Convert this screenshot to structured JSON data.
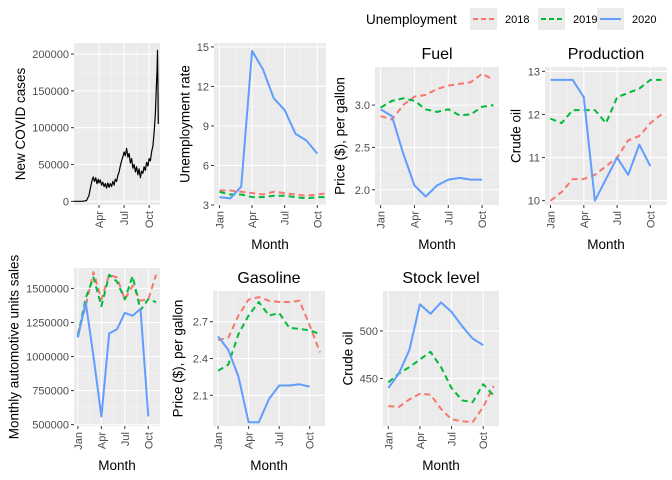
{
  "legend": {
    "title": "Unemployment",
    "position": "top-right",
    "entries": [
      {
        "label": "2018",
        "color": "#F8766D",
        "linetype": "dashed"
      },
      {
        "label": "2019",
        "color": "#00BA38",
        "linetype": "dashed"
      },
      {
        "label": "2020",
        "color": "#619CFF",
        "linetype": "solid"
      }
    ]
  },
  "chart_data": [
    {
      "id": "covid",
      "type": "line",
      "title": "",
      "xlabel": "",
      "ylabel": "New COVID cases",
      "xlim": [
        0,
        10.3
      ],
      "ylim": [
        -5000,
        215000
      ],
      "x_ticks": [
        {
          "v": 3,
          "label": "Apr"
        },
        {
          "v": 6,
          "label": "Jul"
        },
        {
          "v": 9,
          "label": "Oct"
        }
      ],
      "y_ticks": [
        {
          "v": 0,
          "label": "0"
        },
        {
          "v": 50000,
          "label": "50000"
        },
        {
          "v": 100000,
          "label": "100000"
        },
        {
          "v": 150000,
          "label": "150000"
        },
        {
          "v": 200000,
          "label": "200000"
        }
      ],
      "series": [
        {
          "color": "#000000",
          "dashed": false,
          "x": [
            0,
            1.0,
            1.5,
            1.8,
            2.0,
            2.15,
            2.3,
            2.45,
            2.6,
            2.75,
            2.9,
            3.0,
            3.15,
            3.3,
            3.45,
            3.6,
            3.75,
            3.9,
            4.05,
            4.2,
            4.35,
            4.5,
            4.65,
            4.8,
            4.95,
            5.1,
            5.25,
            5.4,
            5.55,
            5.7,
            5.85,
            6.0,
            6.15,
            6.3,
            6.45,
            6.6,
            6.75,
            6.9,
            7.05,
            7.2,
            7.35,
            7.5,
            7.65,
            7.8,
            7.95,
            8.1,
            8.25,
            8.4,
            8.55,
            8.7,
            8.85,
            9.0,
            9.15,
            9.3,
            9.45,
            9.6,
            9.75,
            9.85,
            9.95,
            10.0,
            10.05,
            10.1
          ],
          "y": [
            0,
            0,
            1000,
            8000,
            20000,
            28000,
            33000,
            27000,
            32000,
            24000,
            30000,
            25000,
            29000,
            22000,
            26000,
            20000,
            24000,
            18000,
            25000,
            19000,
            24000,
            20000,
            27000,
            22000,
            30000,
            27000,
            35000,
            40000,
            48000,
            55000,
            60000,
            67000,
            62000,
            72000,
            60000,
            65000,
            52000,
            58000,
            45000,
            50000,
            40000,
            47000,
            36000,
            44000,
            32000,
            41000,
            38000,
            47000,
            42000,
            53000,
            48000,
            58000,
            55000,
            68000,
            75000,
            95000,
            120000,
            150000,
            180000,
            205000,
            160000,
            105000
          ]
        }
      ]
    },
    {
      "id": "unemployment",
      "type": "line",
      "title": "",
      "xlabel": "Month",
      "ylabel": "Unemployment rate",
      "xlim": [
        0.5,
        10.8
      ],
      "ylim": [
        3.0,
        15.3
      ],
      "x_ticks": [
        {
          "v": 1,
          "label": "Jan"
        },
        {
          "v": 4,
          "label": "Apr"
        },
        {
          "v": 7,
          "label": "Jul"
        },
        {
          "v": 10,
          "label": "Oct"
        }
      ],
      "y_ticks": [
        {
          "v": 3,
          "label": "3"
        },
        {
          "v": 6,
          "label": "6"
        },
        {
          "v": 9,
          "label": "9"
        },
        {
          "v": 12,
          "label": "12"
        },
        {
          "v": 15,
          "label": "15"
        }
      ],
      "series": [
        {
          "name": "2018",
          "color": "#F8766D",
          "dashed": true,
          "x": [
            1,
            2,
            3,
            4,
            5,
            6,
            7,
            8,
            9,
            10,
            11
          ],
          "y": [
            4.1,
            4.1,
            4.0,
            3.9,
            3.8,
            4.0,
            3.9,
            3.8,
            3.7,
            3.8,
            3.9
          ]
        },
        {
          "name": "2019",
          "color": "#00BA38",
          "dashed": true,
          "x": [
            1,
            2,
            3,
            4,
            5,
            6,
            7,
            8,
            9,
            10,
            11
          ],
          "y": [
            4.0,
            3.8,
            3.8,
            3.6,
            3.6,
            3.7,
            3.7,
            3.6,
            3.5,
            3.6,
            3.6
          ]
        },
        {
          "name": "2020",
          "color": "#619CFF",
          "dashed": false,
          "x": [
            1,
            2,
            3,
            4,
            5,
            6,
            7,
            8,
            9,
            10
          ],
          "y": [
            3.6,
            3.5,
            4.4,
            14.7,
            13.3,
            11.1,
            10.2,
            8.4,
            7.9,
            6.9
          ]
        }
      ]
    },
    {
      "id": "fuel",
      "type": "line",
      "title": "Fuel",
      "xlabel": "Month",
      "ylabel": "Price ($), per gallon",
      "xlim": [
        0.5,
        11.5
      ],
      "ylim": [
        1.82,
        3.45
      ],
      "x_ticks": [
        {
          "v": 1,
          "label": "Jan"
        },
        {
          "v": 4,
          "label": "Apr"
        },
        {
          "v": 7,
          "label": "Jul"
        },
        {
          "v": 10,
          "label": "Oct"
        }
      ],
      "y_ticks": [
        {
          "v": 2.0,
          "label": "2.0"
        },
        {
          "v": 2.5,
          "label": "2.5"
        },
        {
          "v": 3.0,
          "label": "3.0"
        }
      ],
      "series": [
        {
          "name": "2018",
          "color": "#F8766D",
          "dashed": true,
          "x": [
            1,
            2,
            3,
            4,
            5,
            6,
            7,
            8,
            9,
            10,
            11
          ],
          "y": [
            2.87,
            2.83,
            3.0,
            3.1,
            3.12,
            3.19,
            3.23,
            3.25,
            3.27,
            3.37,
            3.3
          ]
        },
        {
          "name": "2019",
          "color": "#00BA38",
          "dashed": true,
          "x": [
            1,
            2,
            3,
            4,
            5,
            6,
            7,
            8,
            9,
            10,
            11
          ],
          "y": [
            2.97,
            3.05,
            3.08,
            3.05,
            2.95,
            2.92,
            2.95,
            2.88,
            2.89,
            2.98,
            3.0
          ]
        },
        {
          "name": "2020",
          "color": "#619CFF",
          "dashed": false,
          "x": [
            1,
            2,
            3,
            4,
            5,
            6,
            7,
            8,
            9,
            10
          ],
          "y": [
            2.95,
            2.87,
            2.43,
            2.05,
            1.92,
            2.05,
            2.12,
            2.14,
            2.12,
            2.12
          ]
        }
      ]
    },
    {
      "id": "production",
      "type": "line",
      "title": "Production",
      "xlabel": "Month",
      "ylabel": "Crude oil",
      "xlim": [
        0.5,
        11.5
      ],
      "ylim": [
        9.9,
        13.1
      ],
      "x_ticks": [
        {
          "v": 1,
          "label": "Jan"
        },
        {
          "v": 4,
          "label": "Apr"
        },
        {
          "v": 7,
          "label": "Jul"
        },
        {
          "v": 10,
          "label": "Oct"
        }
      ],
      "y_ticks": [
        {
          "v": 10,
          "label": "10"
        },
        {
          "v": 11,
          "label": "11"
        },
        {
          "v": 12,
          "label": "12"
        },
        {
          "v": 13,
          "label": "13"
        }
      ],
      "series": [
        {
          "name": "2018",
          "color": "#F8766D",
          "dashed": true,
          "x": [
            1,
            2,
            3,
            4,
            5,
            6,
            7,
            8,
            9,
            10,
            11
          ],
          "y": [
            10.0,
            10.2,
            10.5,
            10.5,
            10.6,
            10.8,
            11.0,
            11.4,
            11.5,
            11.8,
            12.0
          ]
        },
        {
          "name": "2019",
          "color": "#00BA38",
          "dashed": true,
          "x": [
            1,
            2,
            3,
            4,
            5,
            6,
            7,
            8,
            9,
            10,
            11
          ],
          "y": [
            11.9,
            11.8,
            12.1,
            12.1,
            12.1,
            11.8,
            12.4,
            12.5,
            12.6,
            12.8,
            12.8
          ]
        },
        {
          "name": "2020",
          "color": "#619CFF",
          "dashed": false,
          "x": [
            1,
            2,
            3,
            4,
            5,
            6,
            7,
            8,
            9,
            10
          ],
          "y": [
            12.8,
            12.8,
            12.8,
            12.4,
            10.0,
            10.5,
            11.0,
            10.6,
            11.3,
            10.8
          ]
        }
      ]
    },
    {
      "id": "auto-sales",
      "type": "line",
      "title": "",
      "xlabel": "Month",
      "ylabel": "Monthly automotive units sales",
      "xlim": [
        0.5,
        11.5
      ],
      "ylim": [
        490000,
        1650000
      ],
      "x_ticks": [
        {
          "v": 1,
          "label": "Jan"
        },
        {
          "v": 4,
          "label": "Apr"
        },
        {
          "v": 7,
          "label": "Jul"
        },
        {
          "v": 10,
          "label": "Oct"
        }
      ],
      "y_ticks": [
        {
          "v": 500000,
          "label": "500000"
        },
        {
          "v": 750000,
          "label": "750000"
        },
        {
          "v": 1000000,
          "label": "1000000"
        },
        {
          "v": 1250000,
          "label": "1250000"
        },
        {
          "v": 1500000,
          "label": "1500000"
        }
      ],
      "series": [
        {
          "name": "2018",
          "color": "#F8766D",
          "dashed": true,
          "x": [
            1,
            2,
            3,
            4,
            5,
            6,
            7,
            8,
            9,
            10,
            11
          ],
          "y": [
            1170000,
            1370000,
            1620000,
            1420000,
            1600000,
            1580000,
            1420000,
            1520000,
            1410000,
            1420000,
            1600000
          ]
        },
        {
          "name": "2019",
          "color": "#00BA38",
          "dashed": true,
          "x": [
            1,
            2,
            3,
            4,
            5,
            6,
            7,
            8,
            9,
            10,
            11
          ],
          "y": [
            1150000,
            1430000,
            1580000,
            1370000,
            1600000,
            1550000,
            1420000,
            1590000,
            1340000,
            1420000,
            1400000
          ]
        },
        {
          "name": "2020",
          "color": "#619CFF",
          "dashed": false,
          "x": [
            1,
            2,
            3,
            4,
            5,
            6,
            7,
            8,
            9,
            10
          ],
          "y": [
            1140000,
            1400000,
            1000000,
            560000,
            1170000,
            1200000,
            1320000,
            1300000,
            1350000,
            560000
          ]
        }
      ]
    },
    {
      "id": "gasoline",
      "type": "line",
      "title": "Gasoline",
      "xlabel": "Month",
      "ylabel": "Price ($), per gallon",
      "xlim": [
        0.5,
        11.5
      ],
      "ylim": [
        1.85,
        2.95
      ],
      "x_ticks": [
        {
          "v": 1,
          "label": "Jan"
        },
        {
          "v": 4,
          "label": "Apr"
        },
        {
          "v": 7,
          "label": "Jul"
        },
        {
          "v": 10,
          "label": "Oct"
        }
      ],
      "y_ticks": [
        {
          "v": 2.1,
          "label": "2.1"
        },
        {
          "v": 2.4,
          "label": "2.4"
        },
        {
          "v": 2.7,
          "label": "2.7"
        }
      ],
      "series": [
        {
          "name": "2018",
          "color": "#F8766D",
          "dashed": true,
          "x": [
            1,
            2,
            3,
            4,
            5,
            6,
            7,
            8,
            9,
            10,
            11
          ],
          "y": [
            2.55,
            2.57,
            2.75,
            2.88,
            2.9,
            2.87,
            2.86,
            2.86,
            2.87,
            2.67,
            2.45
          ]
        },
        {
          "name": "2019",
          "color": "#00BA38",
          "dashed": true,
          "x": [
            1,
            2,
            3,
            4,
            5,
            6,
            7,
            8,
            9,
            10,
            11
          ],
          "y": [
            2.3,
            2.35,
            2.6,
            2.75,
            2.86,
            2.75,
            2.77,
            2.65,
            2.64,
            2.63,
            2.6
          ]
        },
        {
          "name": "2020",
          "color": "#619CFF",
          "dashed": false,
          "x": [
            1,
            2,
            3,
            4,
            5,
            6,
            7,
            8,
            9,
            10
          ],
          "y": [
            2.58,
            2.47,
            2.25,
            1.88,
            1.88,
            2.07,
            2.18,
            2.18,
            2.19,
            2.17
          ]
        }
      ]
    },
    {
      "id": "stock",
      "type": "line",
      "title": "Stock level",
      "xlabel": "Month",
      "ylabel": "Crude oil",
      "xlim": [
        0.5,
        11.5
      ],
      "ylim": [
        400,
        542
      ],
      "x_ticks": [
        {
          "v": 1,
          "label": "Jan"
        },
        {
          "v": 4,
          "label": "Apr"
        },
        {
          "v": 7,
          "label": "Jul"
        },
        {
          "v": 10,
          "label": "Oct"
        }
      ],
      "y_ticks": [
        {
          "v": 450,
          "label": "450"
        },
        {
          "v": 500,
          "label": "500"
        }
      ],
      "series": [
        {
          "name": "2018",
          "color": "#F8766D",
          "dashed": true,
          "x": [
            1,
            2,
            3,
            4,
            5,
            6,
            7,
            8,
            9,
            10,
            11
          ],
          "y": [
            421,
            420,
            428,
            434,
            433,
            418,
            407,
            405,
            404,
            420,
            442
          ]
        },
        {
          "name": "2019",
          "color": "#00BA38",
          "dashed": true,
          "x": [
            1,
            2,
            3,
            4,
            5,
            6,
            7,
            8,
            9,
            10,
            11
          ],
          "y": [
            446,
            455,
            462,
            470,
            478,
            462,
            440,
            427,
            425,
            444,
            432
          ]
        },
        {
          "name": "2020",
          "color": "#619CFF",
          "dashed": false,
          "x": [
            1,
            2,
            3,
            4,
            5,
            6,
            7,
            8,
            9,
            10
          ],
          "y": [
            440,
            455,
            480,
            528,
            518,
            530,
            520,
            505,
            492,
            485
          ]
        }
      ]
    }
  ]
}
